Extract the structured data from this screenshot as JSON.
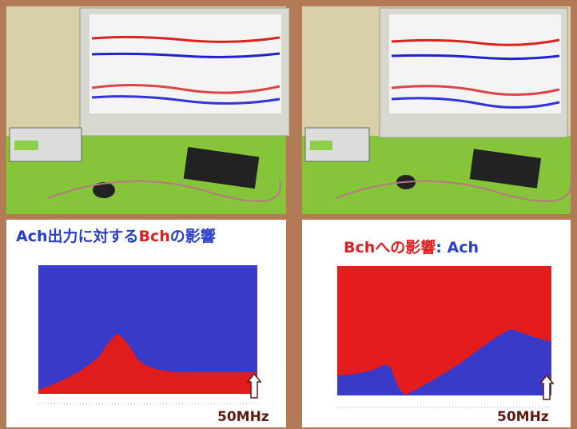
{
  "panels": [
    {
      "title": [
        {
          "text": "Ach出力に対する",
          "color": "#2a3fc8"
        },
        {
          "text": "Bch",
          "color": "#e02020"
        },
        {
          "text": "の影響",
          "color": "#2a3fc8"
        }
      ],
      "freq_label": "50MHz"
    },
    {
      "title": [
        {
          "text": "Bchへの影響",
          "color": "#e02020"
        },
        {
          "text": ": Ach",
          "color": "#2a3fc8"
        }
      ],
      "freq_label": "50MHz"
    }
  ]
}
